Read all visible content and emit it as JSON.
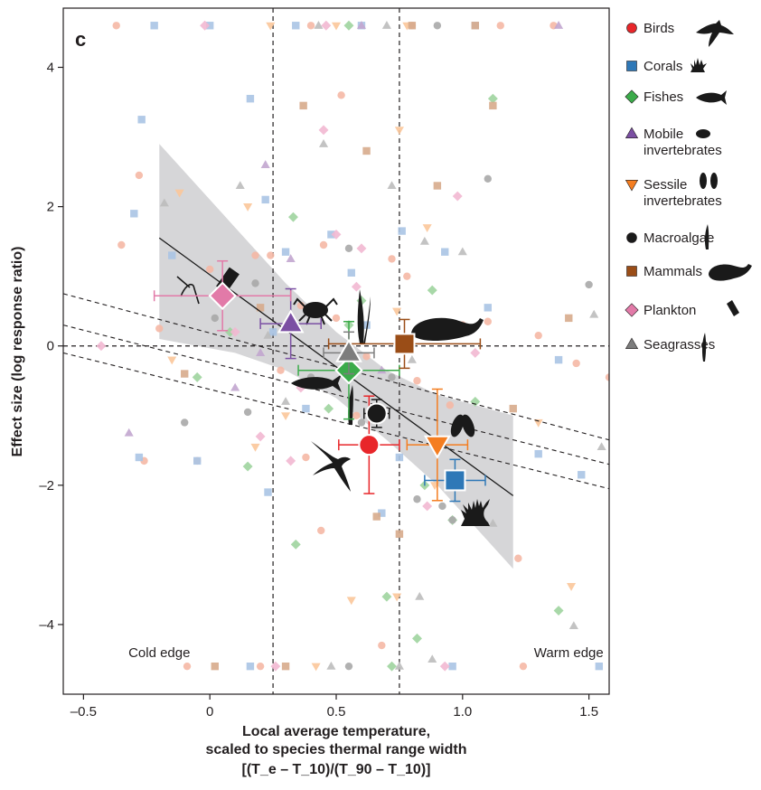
{
  "chart_data": {
    "type": "scatter",
    "panel_label": "c",
    "xlabel_line1": "Local average temperature,",
    "xlabel_line2": "scaled to species thermal range width",
    "xlabel_line3": "[(T_e – T_10)/(T_90 – T_10)]",
    "ylabel": "Effect size (log response ratio)",
    "xlim": [
      -0.58,
      1.58
    ],
    "ylim": [
      -5.0,
      4.85
    ],
    "x_ticks": [
      -0.5,
      0,
      0.5,
      1.0,
      1.5
    ],
    "x_tick_labels": [
      "–0.5",
      "0",
      "0.5",
      "1.0",
      "1.5"
    ],
    "y_ticks": [
      -4,
      -2,
      0,
      2,
      4
    ],
    "y_tick_labels": [
      "–4",
      "–2",
      "0",
      "2",
      "4"
    ],
    "vertical_reference_lines": [
      0.25,
      0.75
    ],
    "horizontal_reference_line": 0,
    "annotations": [
      {
        "text": "Cold edge",
        "x": -0.2,
        "y": -4.4
      },
      {
        "text": "Warm edge",
        "x": 1.42,
        "y": -4.4
      }
    ],
    "legend_position": "right",
    "series": [
      {
        "name": "Birds",
        "marker": "circle",
        "color": "#e8262a",
        "light": "#f5b8a5",
        "mean": {
          "x": 0.63,
          "y": -1.42,
          "xerr": 0.12,
          "yerr": 0.7
        }
      },
      {
        "name": "Corals",
        "marker": "square",
        "color": "#2e78b7",
        "light": "#aac4e4",
        "mean": {
          "x": 0.97,
          "y": -1.93,
          "xerr": 0.12,
          "yerr": 0.3
        }
      },
      {
        "name": "Fishes",
        "marker": "diamond",
        "color": "#3bab4a",
        "light": "#9fd49e",
        "mean": {
          "x": 0.55,
          "y": -0.35,
          "xerr": 0.2,
          "yerr": 0.7
        }
      },
      {
        "name": "Mobile invertebrates",
        "marker": "triangle",
        "color": "#7b4fa3",
        "light": "#c2a6cf",
        "mean": {
          "x": 0.32,
          "y": 0.32,
          "xerr": 0.12,
          "yerr": 0.5
        }
      },
      {
        "name": "Sessile invertebrates",
        "marker": "triangle-down",
        "color": "#f47d20",
        "light": "#fbc79a",
        "mean": {
          "x": 0.9,
          "y": -1.42,
          "xerr": 0.12,
          "yerr": 0.8
        }
      },
      {
        "name": "Macroalgae",
        "marker": "circle",
        "color": "#1a1a1a",
        "light": "#a9a9a9",
        "mean": {
          "x": 0.66,
          "y": -0.97,
          "xerr": 0.05,
          "yerr": 0.2
        }
      },
      {
        "name": "Mammals",
        "marker": "square",
        "color": "#9a4d17",
        "light": "#d7ab8c",
        "mean": {
          "x": 0.77,
          "y": 0.03,
          "xerr": 0.3,
          "yerr": 0.35
        }
      },
      {
        "name": "Plankton",
        "marker": "diamond",
        "color": "#e27aa8",
        "light": "#f2b8d2",
        "mean": {
          "x": 0.05,
          "y": 0.72,
          "xerr": 0.27,
          "yerr": 0.5
        }
      },
      {
        "name": "Seagrasses",
        "marker": "triangle",
        "color": "#7d7d7d",
        "light": "#bdbdbd",
        "mean": {
          "x": 0.55,
          "y": -0.1,
          "xerr": 0.1,
          "yerr": 0.3
        }
      }
    ],
    "regression": {
      "x": [
        -0.2,
        1.2
      ],
      "y": [
        1.55,
        -2.15
      ],
      "band_upper": [
        [
          -0.2,
          2.9
        ],
        [
          0.3,
          0.9
        ],
        [
          0.5,
          0.2
        ],
        [
          0.7,
          -0.35
        ],
        [
          0.9,
          -0.7
        ],
        [
          1.2,
          -1.0
        ]
      ],
      "band_lower": [
        [
          -0.2,
          0.1
        ],
        [
          0.1,
          -0.1
        ],
        [
          0.3,
          -0.35
        ],
        [
          0.5,
          -0.75
        ],
        [
          0.7,
          -1.35
        ],
        [
          0.9,
          -2.0
        ],
        [
          1.2,
          -3.2
        ]
      ]
    },
    "dashed_lines": [
      {
        "x": [
          -0.58,
          1.58
        ],
        "y": [
          0.75,
          -1.35
        ]
      },
      {
        "x": [
          -0.58,
          1.58
        ],
        "y": [
          0.3,
          -1.7
        ]
      },
      {
        "x": [
          -0.58,
          1.58
        ],
        "y": [
          -0.1,
          -2.05
        ]
      }
    ],
    "points": [
      {
        "s": 0,
        "x": -0.35,
        "y": 1.45
      },
      {
        "s": 0,
        "x": -0.28,
        "y": 2.45
      },
      {
        "s": 0,
        "x": -0.26,
        "y": -1.65
      },
      {
        "s": 0,
        "x": -0.2,
        "y": 0.25
      },
      {
        "s": 0,
        "x": 0.0,
        "y": 1.1
      },
      {
        "s": 0,
        "x": 0.18,
        "y": 1.3
      },
      {
        "s": 0,
        "x": 0.24,
        "y": 1.3
      },
      {
        "s": 0,
        "x": 0.36,
        "y": 0.58
      },
      {
        "s": 0,
        "x": 0.45,
        "y": 1.45
      },
      {
        "s": 0,
        "x": 0.52,
        "y": 3.6
      },
      {
        "s": 0,
        "x": 0.38,
        "y": -1.6
      },
      {
        "s": 0,
        "x": 0.44,
        "y": -2.65
      },
      {
        "s": 0,
        "x": 0.5,
        "y": 0.4
      },
      {
        "s": 0,
        "x": 0.58,
        "y": -1.0
      },
      {
        "s": 0,
        "x": 0.72,
        "y": 1.25
      },
      {
        "s": 0,
        "x": 0.78,
        "y": 1.0
      },
      {
        "s": 0,
        "x": 0.82,
        "y": -0.5
      },
      {
        "s": 0,
        "x": 0.95,
        "y": -0.85
      },
      {
        "s": 0,
        "x": 1.0,
        "y": 0.3
      },
      {
        "s": 0,
        "x": 1.1,
        "y": 0.35
      },
      {
        "s": 0,
        "x": 1.22,
        "y": -3.05
      },
      {
        "s": 0,
        "x": 1.45,
        "y": -0.25
      },
      {
        "s": 0,
        "x": 1.58,
        "y": -0.45
      },
      {
        "s": 0,
        "x": -0.05,
        "y": -1.65
      },
      {
        "s": 0,
        "x": 0.28,
        "y": -0.35
      },
      {
        "s": 0,
        "x": 0.62,
        "y": -0.15
      },
      {
        "s": 0,
        "x": 1.3,
        "y": 0.15
      },
      {
        "s": 0,
        "x": 0.68,
        "y": -4.3
      },
      {
        "s": 0,
        "x": -0.37,
        "y": 4.6
      },
      {
        "s": 0,
        "x": -0.09,
        "y": -4.6
      },
      {
        "s": 0,
        "x": 0.4,
        "y": 4.6
      },
      {
        "s": 0,
        "x": 0.8,
        "y": 4.6
      },
      {
        "s": 0,
        "x": 1.15,
        "y": 4.6
      },
      {
        "s": 0,
        "x": 1.36,
        "y": 4.6
      },
      {
        "s": 0,
        "x": 0.2,
        "y": -4.6
      },
      {
        "s": 0,
        "x": 1.24,
        "y": -4.6
      },
      {
        "s": 1,
        "x": -0.27,
        "y": 3.25
      },
      {
        "s": 1,
        "x": -0.3,
        "y": 1.9
      },
      {
        "s": 1,
        "x": -0.28,
        "y": -1.6
      },
      {
        "s": 1,
        "x": -0.05,
        "y": -1.65
      },
      {
        "s": 1,
        "x": 0.16,
        "y": 3.55
      },
      {
        "s": 1,
        "x": 0.22,
        "y": 2.1
      },
      {
        "s": 1,
        "x": 0.23,
        "y": -2.1
      },
      {
        "s": 1,
        "x": 0.25,
        "y": 0.2
      },
      {
        "s": 1,
        "x": 0.3,
        "y": 1.35
      },
      {
        "s": 1,
        "x": 0.48,
        "y": 1.6
      },
      {
        "s": 1,
        "x": 0.56,
        "y": 1.05
      },
      {
        "s": 1,
        "x": 0.62,
        "y": 0.3
      },
      {
        "s": 1,
        "x": 0.76,
        "y": 1.65
      },
      {
        "s": 1,
        "x": 0.68,
        "y": -2.4
      },
      {
        "s": 1,
        "x": 0.75,
        "y": -1.6
      },
      {
        "s": 1,
        "x": 0.93,
        "y": 1.35
      },
      {
        "s": 1,
        "x": 1.1,
        "y": 0.55
      },
      {
        "s": 1,
        "x": 1.3,
        "y": -1.55
      },
      {
        "s": 1,
        "x": 1.47,
        "y": -1.85
      },
      {
        "s": 1,
        "x": 1.38,
        "y": -0.2
      },
      {
        "s": 1,
        "x": 0.38,
        "y": -0.9
      },
      {
        "s": 1,
        "x": -0.15,
        "y": 1.3
      },
      {
        "s": 1,
        "x": -0.22,
        "y": 4.6
      },
      {
        "s": 1,
        "x": 0.0,
        "y": 4.6
      },
      {
        "s": 1,
        "x": 0.34,
        "y": 4.6
      },
      {
        "s": 1,
        "x": 0.6,
        "y": 4.6
      },
      {
        "s": 1,
        "x": 1.05,
        "y": 4.6
      },
      {
        "s": 1,
        "x": 1.54,
        "y": -4.6
      },
      {
        "s": 1,
        "x": 0.96,
        "y": -4.6
      },
      {
        "s": 1,
        "x": 0.16,
        "y": -4.6
      },
      {
        "s": 2,
        "x": 0.33,
        "y": 1.85
      },
      {
        "s": 2,
        "x": 0.6,
        "y": 0.65
      },
      {
        "s": 2,
        "x": 0.88,
        "y": 0.8
      },
      {
        "s": 2,
        "x": 1.12,
        "y": 3.55
      },
      {
        "s": 2,
        "x": 0.7,
        "y": -3.6
      },
      {
        "s": 2,
        "x": 0.96,
        "y": -2.5
      },
      {
        "s": 2,
        "x": 0.34,
        "y": -2.85
      },
      {
        "s": 2,
        "x": 0.85,
        "y": -2.0
      },
      {
        "s": 2,
        "x": 1.05,
        "y": -0.8
      },
      {
        "s": 2,
        "x": 0.15,
        "y": -1.73
      },
      {
        "s": 2,
        "x": -0.05,
        "y": -0.45
      },
      {
        "s": 2,
        "x": 0.08,
        "y": 0.2
      },
      {
        "s": 2,
        "x": 1.38,
        "y": -3.8
      },
      {
        "s": 2,
        "x": 0.55,
        "y": 0.3
      },
      {
        "s": 2,
        "x": 0.47,
        "y": -0.9
      },
      {
        "s": 2,
        "x": 0.82,
        "y": -4.2
      },
      {
        "s": 2,
        "x": 0.72,
        "y": -4.6
      },
      {
        "s": 2,
        "x": 0.55,
        "y": 4.6
      },
      {
        "s": 3,
        "x": 0.22,
        "y": 2.6
      },
      {
        "s": 3,
        "x": 0.32,
        "y": 1.25
      },
      {
        "s": 3,
        "x": 0.1,
        "y": -0.6
      },
      {
        "s": 3,
        "x": -0.32,
        "y": -1.25
      },
      {
        "s": 3,
        "x": 0.68,
        "y": -0.35
      },
      {
        "s": 3,
        "x": 1.38,
        "y": 4.6
      },
      {
        "s": 3,
        "x": 0.6,
        "y": 4.6
      },
      {
        "s": 3,
        "x": 0.2,
        "y": -0.1
      },
      {
        "s": 4,
        "x": -0.12,
        "y": 2.2
      },
      {
        "s": 4,
        "x": 0.15,
        "y": 2.0
      },
      {
        "s": 4,
        "x": 0.75,
        "y": 3.1
      },
      {
        "s": 4,
        "x": 0.74,
        "y": 0.5
      },
      {
        "s": 4,
        "x": 0.86,
        "y": 1.7
      },
      {
        "s": 4,
        "x": 0.3,
        "y": -1.0
      },
      {
        "s": 4,
        "x": 0.56,
        "y": -3.65
      },
      {
        "s": 4,
        "x": 0.89,
        "y": -2.0
      },
      {
        "s": 4,
        "x": 1.3,
        "y": -1.1
      },
      {
        "s": 4,
        "x": 1.43,
        "y": -3.45
      },
      {
        "s": 4,
        "x": 0.74,
        "y": -3.6
      },
      {
        "s": 4,
        "x": 0.18,
        "y": -1.45
      },
      {
        "s": 4,
        "x": -0.15,
        "y": -0.2
      },
      {
        "s": 4,
        "x": 0.24,
        "y": 4.6
      },
      {
        "s": 4,
        "x": 0.5,
        "y": 4.6
      },
      {
        "s": 4,
        "x": 0.78,
        "y": 4.6
      },
      {
        "s": 4,
        "x": 0.42,
        "y": -4.6
      },
      {
        "s": 5,
        "x": 0.02,
        "y": 0.4
      },
      {
        "s": 5,
        "x": 0.18,
        "y": 0.9
      },
      {
        "s": 5,
        "x": 0.55,
        "y": 1.4
      },
      {
        "s": 5,
        "x": 0.72,
        "y": -0.45
      },
      {
        "s": 5,
        "x": 1.1,
        "y": 2.4
      },
      {
        "s": 5,
        "x": 1.5,
        "y": 0.88
      },
      {
        "s": 5,
        "x": 0.92,
        "y": -2.3
      },
      {
        "s": 5,
        "x": 0.82,
        "y": -2.2
      },
      {
        "s": 5,
        "x": 0.96,
        "y": -2.5
      },
      {
        "s": 5,
        "x": 0.15,
        "y": -0.95
      },
      {
        "s": 5,
        "x": -0.1,
        "y": -1.1
      },
      {
        "s": 5,
        "x": 0.6,
        "y": -1.1
      },
      {
        "s": 5,
        "x": 0.4,
        "y": -0.45
      },
      {
        "s": 5,
        "x": 0.9,
        "y": 4.6
      },
      {
        "s": 5,
        "x": 0.55,
        "y": -4.6
      },
      {
        "s": 6,
        "x": 0.37,
        "y": 3.45
      },
      {
        "s": 6,
        "x": 0.62,
        "y": 2.8
      },
      {
        "s": 6,
        "x": 0.9,
        "y": 2.3
      },
      {
        "s": 6,
        "x": 1.12,
        "y": 3.45
      },
      {
        "s": 6,
        "x": 0.2,
        "y": 0.55
      },
      {
        "s": 6,
        "x": 1.42,
        "y": 0.4
      },
      {
        "s": 6,
        "x": 0.66,
        "y": -2.45
      },
      {
        "s": 6,
        "x": 0.75,
        "y": -2.7
      },
      {
        "s": 6,
        "x": 1.2,
        "y": -0.9
      },
      {
        "s": 6,
        "x": -0.1,
        "y": -0.4
      },
      {
        "s": 6,
        "x": 0.8,
        "y": 4.6
      },
      {
        "s": 6,
        "x": 1.05,
        "y": 4.6
      },
      {
        "s": 6,
        "x": 0.02,
        "y": -4.6
      },
      {
        "s": 6,
        "x": 0.3,
        "y": -4.6
      },
      {
        "s": 7,
        "x": -0.43,
        "y": 0.0
      },
      {
        "s": 7,
        "x": 0.1,
        "y": 0.2
      },
      {
        "s": 7,
        "x": 0.5,
        "y": 1.6
      },
      {
        "s": 7,
        "x": 0.6,
        "y": 1.4
      },
      {
        "s": 7,
        "x": 0.98,
        "y": 2.15
      },
      {
        "s": 7,
        "x": 0.45,
        "y": 3.1
      },
      {
        "s": 7,
        "x": 0.58,
        "y": 0.85
      },
      {
        "s": 7,
        "x": 0.2,
        "y": -1.3
      },
      {
        "s": 7,
        "x": 0.32,
        "y": -1.65
      },
      {
        "s": 7,
        "x": 0.86,
        "y": -2.3
      },
      {
        "s": 7,
        "x": 1.05,
        "y": -0.1
      },
      {
        "s": 7,
        "x": 0.36,
        "y": -0.6
      },
      {
        "s": 7,
        "x": -0.02,
        "y": 4.6
      },
      {
        "s": 7,
        "x": 0.46,
        "y": 4.6
      },
      {
        "s": 7,
        "x": 0.26,
        "y": -4.6
      },
      {
        "s": 7,
        "x": 0.93,
        "y": -4.6
      },
      {
        "s": 8,
        "x": -0.18,
        "y": 2.05
      },
      {
        "s": 8,
        "x": 0.12,
        "y": 2.3
      },
      {
        "s": 8,
        "x": 0.45,
        "y": 2.9
      },
      {
        "s": 8,
        "x": 0.72,
        "y": 2.3
      },
      {
        "s": 8,
        "x": 0.85,
        "y": 1.5
      },
      {
        "s": 8,
        "x": 1.0,
        "y": 1.35
      },
      {
        "s": 8,
        "x": 1.52,
        "y": 0.45
      },
      {
        "s": 8,
        "x": 0.8,
        "y": -0.2
      },
      {
        "s": 8,
        "x": 1.44,
        "y": -4.02
      },
      {
        "s": 8,
        "x": 1.55,
        "y": -1.45
      },
      {
        "s": 8,
        "x": 1.12,
        "y": -2.55
      },
      {
        "s": 8,
        "x": 0.83,
        "y": -3.6
      },
      {
        "s": 8,
        "x": 0.23,
        "y": 0.15
      },
      {
        "s": 8,
        "x": 0.3,
        "y": -0.8
      },
      {
        "s": 8,
        "x": 0.7,
        "y": 4.6
      },
      {
        "s": 8,
        "x": 0.43,
        "y": 4.6
      },
      {
        "s": 8,
        "x": 0.88,
        "y": -4.5
      },
      {
        "s": 8,
        "x": 0.75,
        "y": -4.6
      },
      {
        "s": 8,
        "x": 0.48,
        "y": -4.6
      }
    ]
  }
}
